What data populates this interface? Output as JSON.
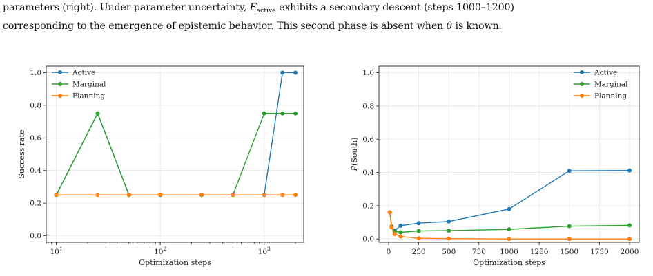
{
  "caption": {
    "line1_a": "parameters (right).  Under parameter uncertainty, ",
    "line1_F": "F",
    "line1_sub": "active",
    "line1_b": " exhibits a secondary descent (steps 1000–1200)",
    "line2_a": "corresponding to the emergence of epistemic behavior.  This second phase is absent when ",
    "line2_theta": "θ",
    "line2_b": " is known."
  },
  "colors": {
    "active": "#1f77b4",
    "marginal": "#2ca02c",
    "planning": "#ff7f0e"
  },
  "chart_data": [
    {
      "type": "line",
      "xscale": "log",
      "xlabel": "Optimization steps",
      "ylabel": "Success rate",
      "xlim": [
        8,
        2400
      ],
      "ylim": [
        -0.04,
        1.04
      ],
      "yticks": [
        0.0,
        0.2,
        0.4,
        0.6,
        0.8,
        1.0
      ],
      "ytick_labels": [
        "0.0",
        "0.2",
        "0.4",
        "0.6",
        "0.8",
        "1.0"
      ],
      "xticks": [
        10,
        100,
        1000
      ],
      "xtick_labels": [
        "10",
        "10",
        "10"
      ],
      "xtick_exps": [
        "1",
        "2",
        "3"
      ],
      "grid": true,
      "legend_position": "top-left",
      "x": [
        10,
        25,
        50,
        100,
        250,
        500,
        1000,
        1500,
        2000
      ],
      "series": [
        {
          "name": "Active",
          "color": "#1f77b4",
          "values": [
            0.25,
            0.75,
            0.25,
            0.25,
            0.25,
            0.25,
            0.25,
            1.0,
            1.0
          ]
        },
        {
          "name": "Marginal",
          "color": "#2ca02c",
          "values": [
            0.25,
            0.75,
            0.25,
            0.25,
            0.25,
            0.25,
            0.75,
            0.75,
            0.75
          ]
        },
        {
          "name": "Planning",
          "color": "#ff7f0e",
          "values": [
            0.25,
            0.25,
            0.25,
            0.25,
            0.25,
            0.25,
            0.25,
            0.25,
            0.25
          ]
        }
      ]
    },
    {
      "type": "line",
      "xscale": "linear",
      "xlabel": "Optimization steps",
      "ylabel_italic": "P",
      "ylabel_rest": "(South)",
      "xlim": [
        -80,
        2080
      ],
      "ylim": [
        -0.02,
        1.04
      ],
      "yticks": [
        0.0,
        0.2,
        0.4,
        0.6,
        0.8,
        1.0
      ],
      "ytick_labels": [
        "0.0",
        "0.2",
        "0.4",
        "0.6",
        "0.8",
        "1.0"
      ],
      "xticks": [
        0,
        250,
        500,
        750,
        1000,
        1250,
        1500,
        1750,
        2000
      ],
      "xtick_labels": [
        "0",
        "250",
        "500",
        "750",
        "1000",
        "1250",
        "1500",
        "1750",
        "2000"
      ],
      "grid": true,
      "legend_position": "top-right",
      "x": [
        10,
        25,
        50,
        100,
        250,
        500,
        1000,
        1500,
        2000
      ],
      "series": [
        {
          "name": "Active",
          "color": "#1f77b4",
          "values": [
            0.16,
            0.075,
            0.05,
            0.08,
            0.095,
            0.105,
            0.18,
            0.41,
            0.412
          ]
        },
        {
          "name": "Marginal",
          "color": "#2ca02c",
          "values": [
            0.16,
            0.075,
            0.045,
            0.04,
            0.048,
            0.05,
            0.058,
            0.077,
            0.082
          ]
        },
        {
          "name": "Planning",
          "color": "#ff7f0e",
          "values": [
            0.16,
            0.07,
            0.03,
            0.015,
            0.004,
            0.002,
            0.0,
            0.0,
            0.0
          ]
        }
      ]
    }
  ]
}
